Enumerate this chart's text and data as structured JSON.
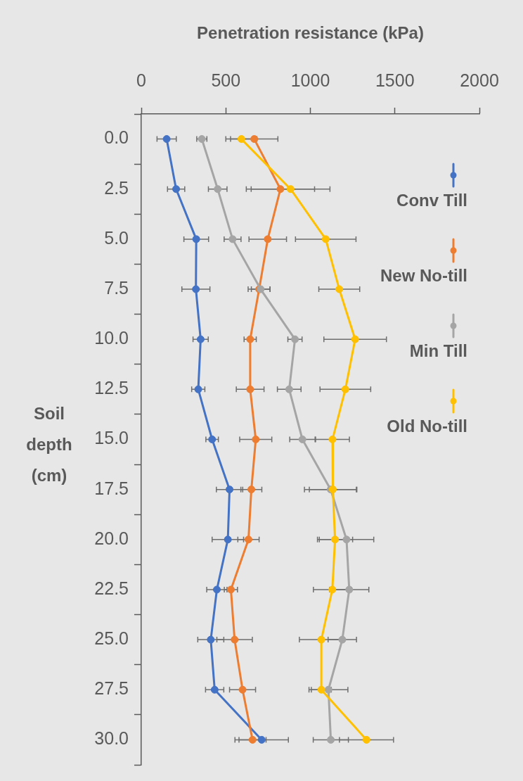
{
  "chart_data": {
    "type": "line",
    "orientation": "horizontal",
    "xlabel": "Penetration resistance (kPa)",
    "ylabel": "Soil depth (cm)",
    "categories": [
      "0.0",
      "2.5",
      "5.0",
      "7.5",
      "10.0",
      "12.5",
      "15.0",
      "17.5",
      "20.0",
      "22.5",
      "25.0",
      "27.5",
      "30.0"
    ],
    "xlim": [
      0,
      2000
    ],
    "xticks": [
      0,
      500,
      1000,
      1500,
      2000
    ],
    "grid": false,
    "legend": "right",
    "marker": "circle",
    "line_style": "solid",
    "series": [
      {
        "name": "Conv Till",
        "color": "#4472c4",
        "values": [
          150,
          206,
          325,
          323,
          351,
          337,
          419,
          522,
          512,
          447,
          411,
          434,
          712
        ],
        "errors": [
          57,
          51,
          73,
          83,
          45,
          39,
          37,
          78,
          93,
          60,
          77,
          54,
          158
        ]
      },
      {
        "name": "New No-till",
        "color": "#ed7d31",
        "values": [
          668,
          823,
          748,
          697,
          644,
          644,
          677,
          651,
          634,
          530,
          552,
          599,
          658
        ],
        "errors": [
          140,
          202,
          111,
          65,
          36,
          82,
          95,
          62,
          63,
          39,
          105,
          77,
          80
        ]
      },
      {
        "name": "Min Till",
        "color": "#a5a5a5",
        "values": [
          358,
          452,
          540,
          706,
          909,
          875,
          953,
          1120,
          1214,
          1230,
          1189,
          1107,
          1121
        ],
        "errors": [
          30,
          55,
          50,
          55,
          42,
          70,
          75,
          155,
          161,
          116,
          84,
          115,
          104
        ]
      },
      {
        "name": "Old No-till",
        "color": "#ffc000",
        "values": [
          592,
          883,
          1091,
          1171,
          1265,
          1207,
          1131,
          1133,
          1146,
          1130,
          1065,
          1065,
          1332
        ],
        "errors": [
          92,
          233,
          179,
          121,
          185,
          150,
          100,
          139,
          104,
          112,
          130,
          59,
          160
        ]
      }
    ]
  }
}
